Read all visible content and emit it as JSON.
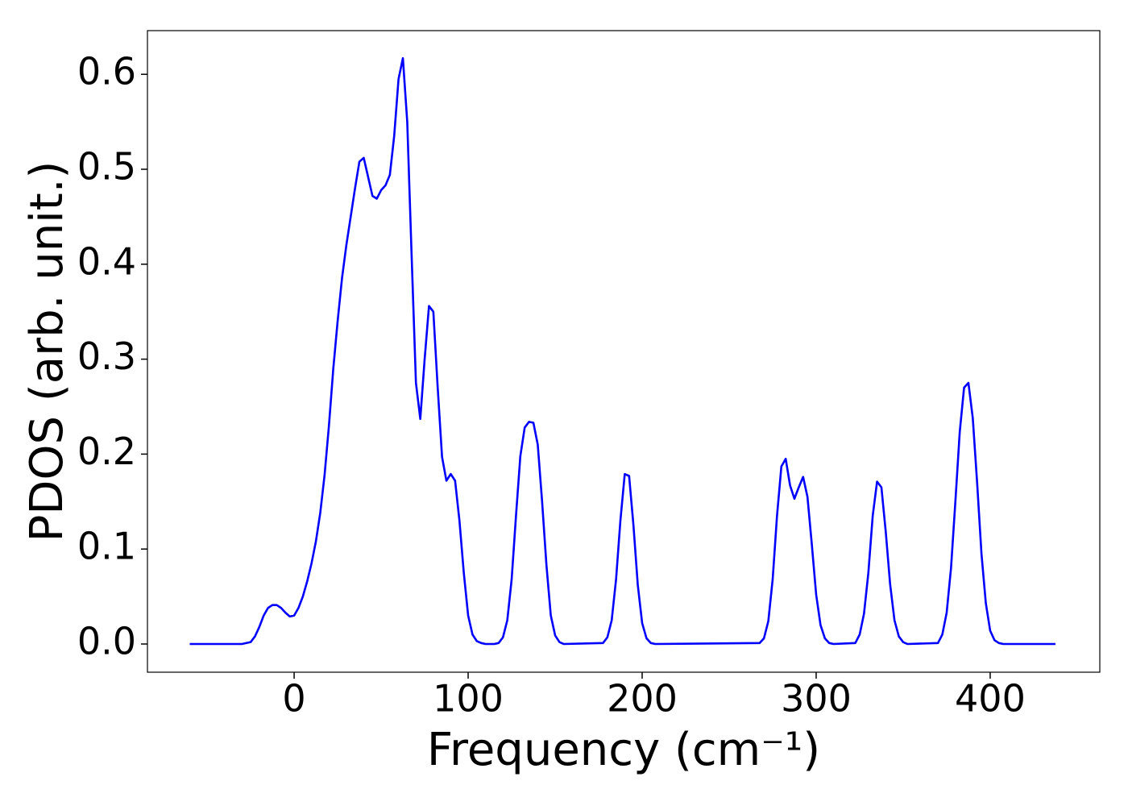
{
  "chart_data": {
    "type": "line",
    "x_label": "Frequency (cm⁻¹)",
    "y_label": "PDOS (arb. unit.)",
    "color": "#0000ff",
    "xlim": [
      -84.3,
      463
    ],
    "ylim": [
      -0.0297,
      0.646
    ],
    "xticks": [
      0,
      100,
      200,
      300,
      400
    ],
    "yticks": [
      {
        "value": 0,
        "label": "0.0"
      },
      0.1,
      0.2,
      0.3,
      0.4,
      0.5,
      0.6
    ],
    "x": [
      -60,
      -30,
      -25,
      -22.5,
      -20,
      -17.5,
      -15,
      -12.5,
      -10,
      -7.5,
      -5,
      -2.5,
      0,
      2.5,
      5,
      7.5,
      10,
      12.5,
      15,
      17.5,
      20,
      22.5,
      25,
      27.5,
      30,
      32.5,
      35,
      37.5,
      40,
      42.5,
      45,
      47.5,
      50,
      52.5,
      55,
      57.5,
      60,
      62.5,
      65,
      67.5,
      70,
      72.5,
      75,
      77.5,
      80,
      82.5,
      85,
      87.5,
      90,
      92.5,
      95,
      97.5,
      100,
      102.5,
      105,
      107.5,
      110,
      115,
      117.5,
      120,
      122.5,
      125,
      127.5,
      130,
      132.5,
      135,
      137.5,
      140,
      142.5,
      145,
      147.5,
      150,
      152.5,
      155,
      177.5,
      180,
      182.5,
      185,
      187.5,
      190,
      192.5,
      195,
      197.5,
      200,
      202.5,
      205,
      207.5,
      267.5,
      270,
      272.5,
      275,
      277.5,
      280,
      282.5,
      285,
      287.5,
      290,
      292.5,
      295,
      297.5,
      300,
      302.5,
      305,
      307.5,
      310,
      322.5,
      325,
      327.5,
      330,
      332.5,
      335,
      337.5,
      340,
      342.5,
      345,
      347.5,
      350,
      352.5,
      370,
      372.5,
      375,
      377.5,
      380,
      382.5,
      385,
      387.5,
      390,
      392.5,
      395,
      397.5,
      400,
      402.5,
      405,
      407.5,
      437.5
    ],
    "values": [
      0,
      0,
      0.002,
      0.008,
      0.018,
      0.03,
      0.038,
      0.041,
      0.041,
      0.038,
      0.033,
      0.029,
      0.03,
      0.038,
      0.05,
      0.066,
      0.085,
      0.108,
      0.138,
      0.178,
      0.23,
      0.29,
      0.34,
      0.385,
      0.42,
      0.45,
      0.48,
      0.508,
      0.512,
      0.492,
      0.472,
      0.469,
      0.478,
      0.483,
      0.494,
      0.535,
      0.595,
      0.617,
      0.55,
      0.41,
      0.275,
      0.237,
      0.3,
      0.356,
      0.35,
      0.27,
      0.197,
      0.172,
      0.179,
      0.172,
      0.13,
      0.075,
      0.03,
      0.01,
      0.003,
      0.001,
      0,
      0,
      0.001,
      0.007,
      0.025,
      0.068,
      0.135,
      0.198,
      0.228,
      0.234,
      0.233,
      0.21,
      0.15,
      0.083,
      0.03,
      0.009,
      0.002,
      0,
      0.001,
      0.007,
      0.025,
      0.068,
      0.13,
      0.179,
      0.177,
      0.125,
      0.062,
      0.022,
      0.006,
      0.001,
      0,
      0.001,
      0.006,
      0.024,
      0.068,
      0.135,
      0.187,
      0.195,
      0.167,
      0.153,
      0.165,
      0.176,
      0.155,
      0.105,
      0.052,
      0.02,
      0.006,
      0.001,
      0,
      0.001,
      0.01,
      0.032,
      0.075,
      0.135,
      0.171,
      0.165,
      0.118,
      0.063,
      0.025,
      0.008,
      0.002,
      0,
      0.001,
      0.01,
      0.033,
      0.08,
      0.15,
      0.223,
      0.27,
      0.275,
      0.238,
      0.17,
      0.095,
      0.043,
      0.014,
      0.004,
      0.001,
      0,
      0
    ]
  }
}
